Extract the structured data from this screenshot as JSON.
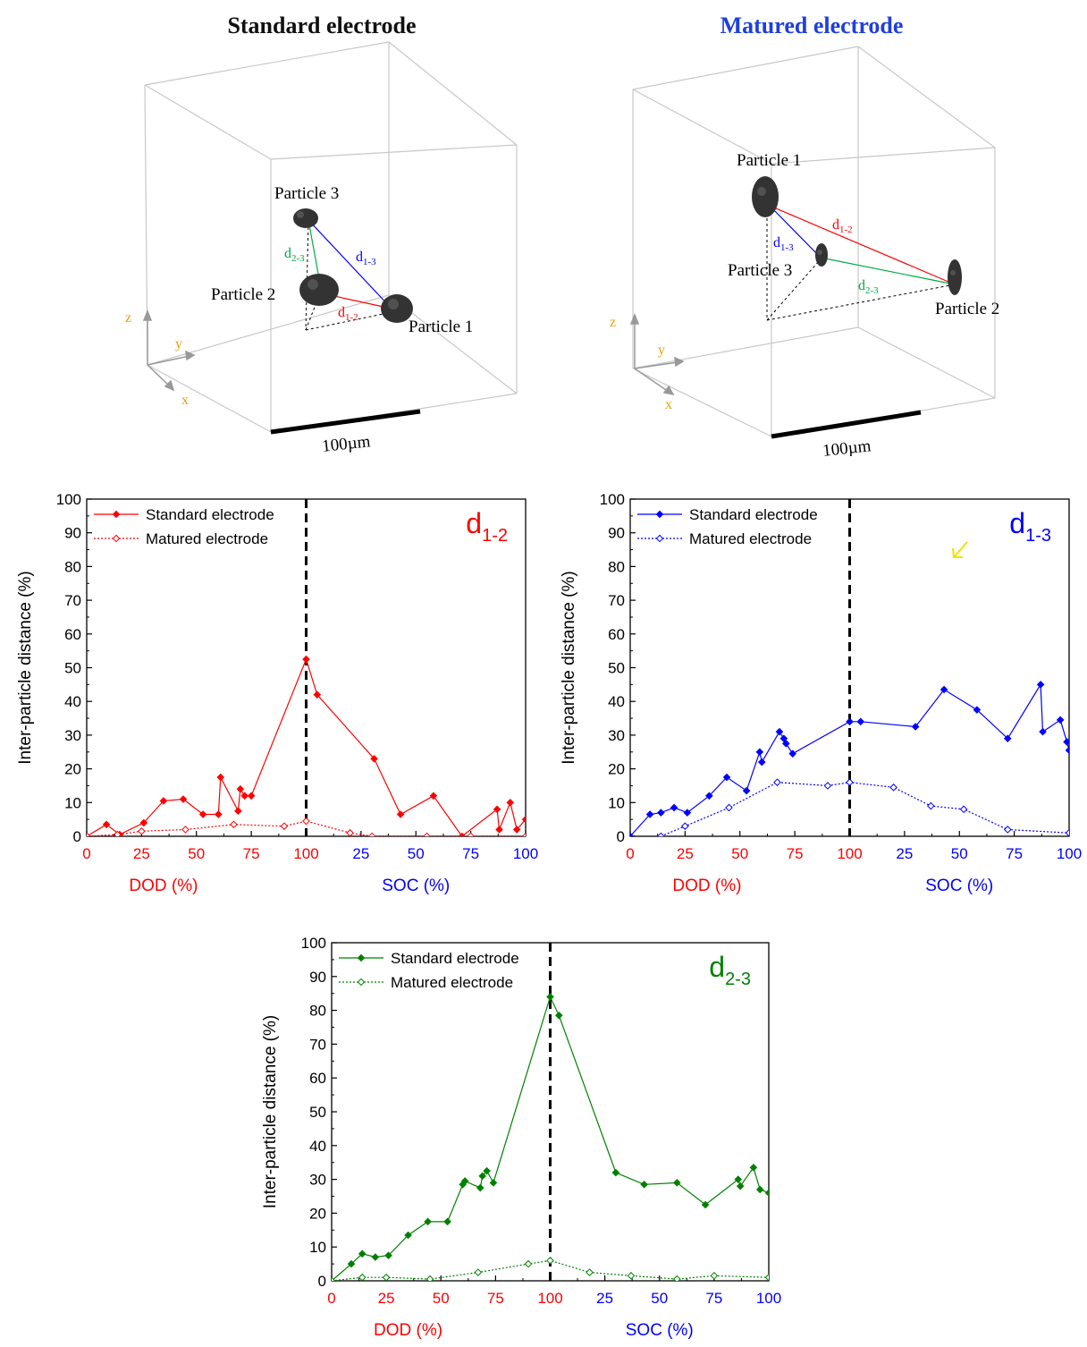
{
  "colors": {
    "red": "#ff0000",
    "blue": "#0000ff",
    "green": "#008000",
    "title_blue": "#1f3fdc",
    "axis_orange": "#e8a000",
    "yellow_arrow": "#f0e000"
  },
  "cubes": [
    {
      "title": "Standard electrode",
      "particles": [
        "Particle 1",
        "Particle 2",
        "Particle 3"
      ],
      "distances": {
        "d12": "d",
        "d12_sub": "1-2",
        "d13": "d",
        "d13_sub": "1-3",
        "d23": "d",
        "d23_sub": "2-3"
      },
      "axes": {
        "x": "x",
        "y": "y",
        "z": "z"
      },
      "scale": "100µm"
    },
    {
      "title": "Matured electrode",
      "particles": [
        "Particle 1",
        "Particle 2",
        "Particle 3"
      ],
      "distances": {
        "d12": "d",
        "d12_sub": "1-2",
        "d13": "d",
        "d13_sub": "1-3",
        "d23": "d",
        "d23_sub": "2-3"
      },
      "axes": {
        "x": "x",
        "y": "y",
        "z": "z"
      },
      "scale": "100µm"
    }
  ],
  "chart_data": [
    {
      "type": "line",
      "id": "d12",
      "label_main": "d",
      "label_sub": "1-2",
      "color": "#ff0000",
      "ylabel": "Inter-particle distance (%)",
      "xlabel_left": "DOD (%)",
      "xlabel_right": "SOC (%)",
      "ylim": [
        0,
        100
      ],
      "xlim": [
        0,
        200
      ],
      "x_ticks": [
        "0",
        "25",
        "50",
        "75",
        "100",
        "25",
        "50",
        "75",
        "100"
      ],
      "y_ticks": [
        "0",
        "10",
        "20",
        "30",
        "40",
        "50",
        "60",
        "70",
        "80",
        "90",
        "100"
      ],
      "divider_x": 100,
      "legend": [
        "Standard electrode",
        "Matured electrode"
      ],
      "series": [
        {
          "name": "Standard electrode",
          "style": "solid",
          "x": [
            0,
            9,
            15,
            26,
            35,
            44,
            53,
            60,
            61,
            69,
            70,
            72,
            75,
            100,
            105,
            131,
            143,
            158,
            171,
            187,
            188,
            193,
            196,
            200
          ],
          "y": [
            0,
            3.5,
            0.5,
            4,
            10.5,
            11,
            6.5,
            6.5,
            17.5,
            7.5,
            14,
            12,
            12,
            52.5,
            42,
            23,
            6.5,
            12,
            0,
            8,
            2,
            10,
            2,
            5
          ]
        },
        {
          "name": "Matured electrode",
          "style": "dotted",
          "x": [
            0,
            14,
            25,
            45,
            67,
            90,
            100,
            120,
            130,
            155,
            175,
            200
          ],
          "y": [
            0,
            0.5,
            1.5,
            2,
            3.5,
            3,
            4.5,
            1,
            0,
            0,
            0,
            0
          ]
        }
      ]
    },
    {
      "type": "line",
      "id": "d13",
      "label_main": "d",
      "label_sub": "1-3",
      "color": "#0000ff",
      "ylabel": "Inter-particle distance (%)",
      "xlabel_left": "DOD (%)",
      "xlabel_right": "SOC (%)",
      "ylim": [
        0,
        100
      ],
      "xlim": [
        0,
        200
      ],
      "x_ticks": [
        "0",
        "25",
        "50",
        "75",
        "100",
        "25",
        "50",
        "75",
        "100"
      ],
      "y_ticks": [
        "0",
        "10",
        "20",
        "30",
        "40",
        "50",
        "60",
        "70",
        "80",
        "90",
        "100"
      ],
      "divider_x": 100,
      "legend": [
        "Standard electrode",
        "Matured electrode"
      ],
      "series": [
        {
          "name": "Standard electrode",
          "style": "solid",
          "x": [
            0,
            9,
            14,
            20,
            26,
            36,
            44,
            53,
            59,
            60,
            68,
            70,
            71,
            74,
            100,
            105,
            130,
            143,
            158,
            172,
            187,
            188,
            196,
            199,
            200
          ],
          "y": [
            0,
            6.5,
            7,
            8.5,
            7,
            12,
            17.5,
            13.5,
            25,
            22,
            31,
            29,
            27.5,
            24.5,
            34,
            34,
            32.5,
            43.5,
            37.5,
            29,
            45,
            31,
            34.5,
            28,
            25.5
          ]
        },
        {
          "name": "Matured electrode",
          "style": "dotted",
          "x": [
            14,
            25,
            45,
            67,
            90,
            100,
            120,
            137,
            152,
            172,
            200
          ],
          "y": [
            0,
            3,
            8.5,
            16,
            15,
            16,
            14.5,
            9,
            8,
            2,
            1
          ]
        }
      ]
    },
    {
      "type": "line",
      "id": "d23",
      "label_main": "d",
      "label_sub": "2-3",
      "color": "#008000",
      "ylabel": "Inter-particle distance (%)",
      "xlabel_left": "DOD (%)",
      "xlabel_right": "SOC (%)",
      "ylim": [
        0,
        100
      ],
      "xlim": [
        0,
        200
      ],
      "x_ticks": [
        "0",
        "25",
        "50",
        "75",
        "100",
        "25",
        "50",
        "75",
        "100"
      ],
      "y_ticks": [
        "0",
        "10",
        "20",
        "30",
        "40",
        "50",
        "60",
        "70",
        "80",
        "90",
        "100"
      ],
      "divider_x": 100,
      "legend": [
        "Standard electrode",
        "Matured electrode"
      ],
      "series": [
        {
          "name": "Standard electrode",
          "style": "solid",
          "x": [
            0,
            9,
            14,
            20,
            26,
            35,
            44,
            53,
            60,
            61,
            68,
            69,
            71,
            74,
            100,
            104,
            130,
            143,
            158,
            171,
            186,
            187,
            193,
            196,
            200
          ],
          "y": [
            0,
            5,
            8,
            7,
            7.5,
            13.5,
            17.5,
            17.5,
            28.5,
            29.5,
            27.5,
            31,
            32.5,
            29,
            84,
            78.5,
            32,
            28.5,
            29,
            22.5,
            30,
            28,
            33.5,
            27,
            26
          ]
        },
        {
          "name": "Matured electrode",
          "style": "dotted",
          "x": [
            0,
            14,
            25,
            45,
            67,
            90,
            100,
            118,
            137,
            158,
            175,
            200
          ],
          "y": [
            0,
            1,
            1,
            0.5,
            2.5,
            5,
            6,
            2.5,
            1.5,
            0.5,
            1.5,
            1
          ]
        }
      ]
    }
  ]
}
